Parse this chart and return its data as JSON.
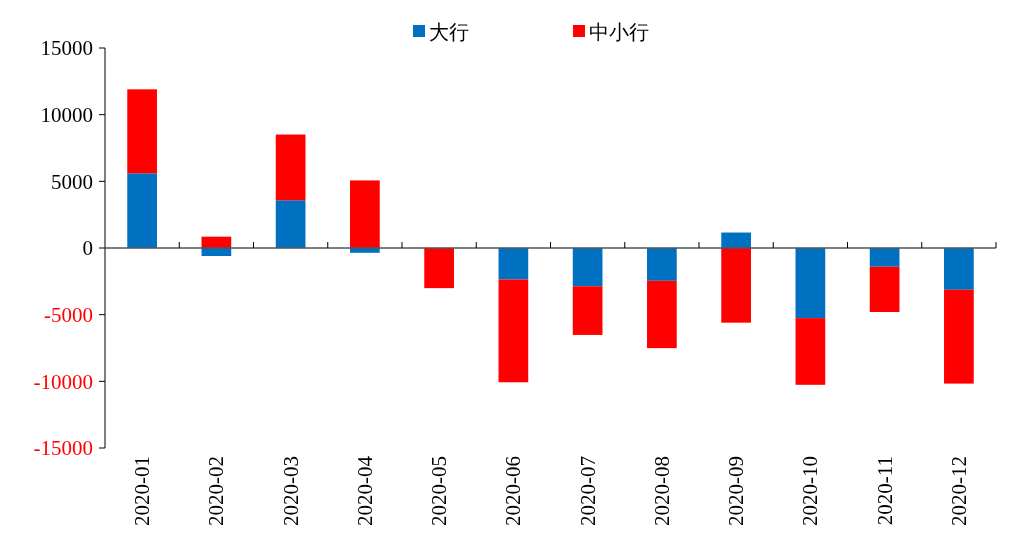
{
  "chart_data": {
    "type": "bar",
    "stacked": true,
    "legend": "top",
    "categories": [
      "2020-01",
      "2020-02",
      "2020-03",
      "2020-04",
      "2020-05",
      "2020-06",
      "2020-07",
      "2020-08",
      "2020-09",
      "2020-10",
      "2020-11",
      "2020-12"
    ],
    "series": [
      {
        "name": "大行",
        "color": "#0070c0",
        "values": [
          5600,
          -600,
          3580,
          -360,
          0,
          -2360,
          -2870,
          -2460,
          1160,
          -5260,
          -1400,
          -3130
        ]
      },
      {
        "name": "中小行",
        "color": "#ff0000",
        "values": [
          6300,
          850,
          4930,
          5070,
          -3010,
          -7710,
          -3650,
          -5050,
          -5600,
          -5000,
          -3400,
          -7040
        ]
      }
    ],
    "ylim": [
      -15000,
      15000
    ],
    "yticks": [
      -15000,
      -10000,
      -5000,
      0,
      5000,
      10000,
      15000
    ]
  }
}
